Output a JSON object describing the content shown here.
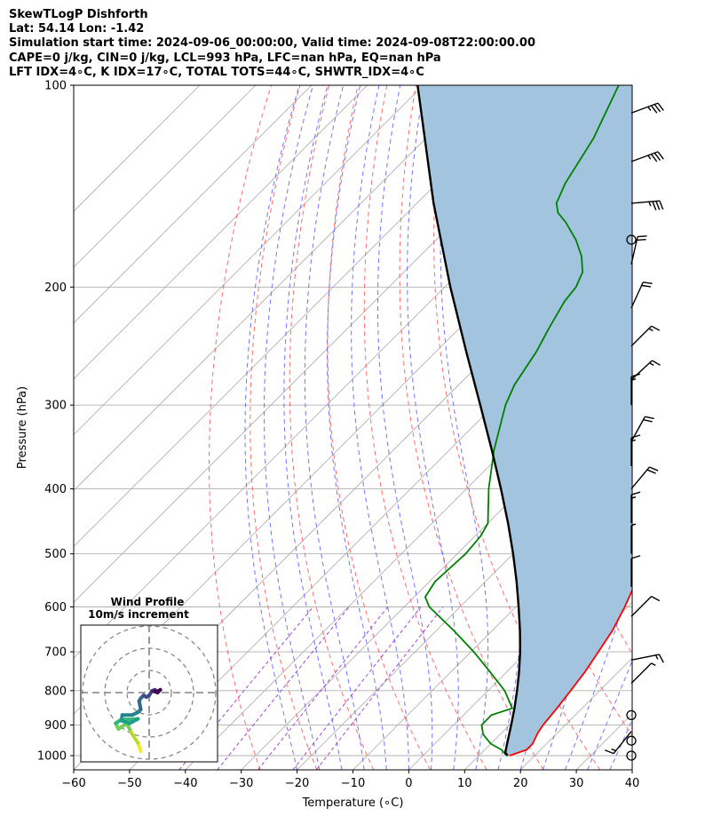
{
  "header": {
    "lines": [
      "SkewTLogP Dishforth",
      "Lat: 54.14   Lon: -1.42",
      "Simulation start time: 2024-09-06_00:00:00, Valid time: 2024-09-08T22:00:00.00",
      "CAPE=0 j/kg, CIN=0 j/kg, LCL=993 hPa, LFC=nan hPa, EQ=nan hPa",
      "LFT IDX=4∘C, K IDX=17∘C, TOTAL TOTS=44∘C, SHWTR_IDX=4∘C"
    ]
  },
  "chart_data": [
    {
      "type": "line",
      "subtype": "skew-t-log-p",
      "xlabel": "Temperature (∘C)",
      "ylabel": "Pressure (hPa)",
      "xlim": [
        -60,
        40
      ],
      "ylim": [
        1050,
        100
      ],
      "y_scale": "log",
      "x_ticks": [
        "−60",
        "−50",
        "−40",
        "−30",
        "−20",
        "−10",
        "0",
        "10",
        "20",
        "30",
        "40"
      ],
      "y_ticks": [
        "100",
        "200",
        "300",
        "400",
        "500",
        "600",
        "700",
        "800",
        "900",
        "1000"
      ],
      "grid": true,
      "series": [
        {
          "role": "temperature",
          "color": "#ff0000",
          "points": [
            [
              1000,
              15.5
            ],
            [
              980,
              17.5
            ],
            [
              960,
              17.5
            ],
            [
              925,
              16.5
            ],
            [
              900,
              16
            ],
            [
              850,
              15.5
            ],
            [
              800,
              14.8
            ],
            [
              750,
              14
            ],
            [
              700,
              12.8
            ],
            [
              650,
              11.5
            ],
            [
              600,
              9.5
            ],
            [
              550,
              7
            ],
            [
              500,
              3
            ],
            [
              450,
              -1.5
            ],
            [
              400,
              -6.5
            ],
            [
              350,
              -12
            ],
            [
              325,
              -15.5
            ],
            [
              300,
              -19
            ],
            [
              275,
              -23
            ],
            [
              250,
              -27
            ],
            [
              230,
              -31
            ],
            [
              210,
              -34
            ],
            [
              200,
              -35
            ],
            [
              180,
              -39
            ],
            [
              160,
              -43
            ],
            [
              150,
              -46.5
            ],
            [
              140,
              -50
            ],
            [
              130,
              -54
            ],
            [
              120,
              -58
            ],
            [
              110,
              -62.5
            ],
            [
              100,
              -67
            ]
          ]
        },
        {
          "role": "dewpoint",
          "color": "#008000",
          "points": [
            [
              1000,
              15
            ],
            [
              980,
              13
            ],
            [
              960,
              10
            ],
            [
              930,
              7
            ],
            [
              900,
              5
            ],
            [
              870,
              5
            ],
            [
              850,
              7.5
            ],
            [
              800,
              3
            ],
            [
              750,
              -3
            ],
            [
              700,
              -9.5
            ],
            [
              650,
              -17
            ],
            [
              600,
              -25.5
            ],
            [
              580,
              -28
            ],
            [
              550,
              -29
            ],
            [
              500,
              -28.5
            ],
            [
              470,
              -29
            ],
            [
              450,
              -30
            ],
            [
              400,
              -36
            ],
            [
              350,
              -42
            ],
            [
              300,
              -48
            ],
            [
              280,
              -50
            ],
            [
              250,
              -52
            ],
            [
              230,
              -54
            ],
            [
              210,
              -56
            ],
            [
              200,
              -56.5
            ],
            [
              190,
              -58
            ],
            [
              180,
              -61
            ],
            [
              170,
              -65
            ],
            [
              160,
              -70
            ],
            [
              155,
              -73
            ],
            [
              150,
              -75
            ],
            [
              140,
              -77
            ],
            [
              120,
              -80
            ],
            [
              100,
              -85
            ]
          ]
        },
        {
          "role": "parcel",
          "color": "#000000",
          "points": [
            [
              1000,
              15.2
            ],
            [
              990,
              14.2
            ],
            [
              950,
              12.5
            ],
            [
              900,
              10.3
            ],
            [
              850,
              7.9
            ],
            [
              800,
              5.2
            ],
            [
              750,
              2.2
            ],
            [
              700,
              -1.2
            ],
            [
              650,
              -5.1
            ],
            [
              600,
              -9.5
            ],
            [
              550,
              -14.4
            ],
            [
              500,
              -20
            ],
            [
              450,
              -26.4
            ],
            [
              400,
              -33.8
            ],
            [
              350,
              -42.4
            ],
            [
              300,
              -52.5
            ],
            [
              250,
              -64.5
            ],
            [
              200,
              -79
            ],
            [
              150,
              -97
            ],
            [
              100,
              -121
            ]
          ]
        }
      ],
      "fill_between": {
        "series": [
          "temperature",
          "parcel"
        ],
        "color": "#a3c4de"
      },
      "reference_lines": {
        "isotherm_color": "#a9a9a9",
        "dry_adiabat_color": "#ff5a5a",
        "moist_adiabat_color": "#5a5aff",
        "mixing_ratio_color": "#9932cc"
      },
      "wind_barbs": {
        "color": "#000000",
        "calm_circles_hPa": [
          170,
          870,
          950,
          1000
        ],
        "barbs": [
          {
            "p": 110,
            "u": 35,
            "v": 13
          },
          {
            "p": 130,
            "u": 35,
            "v": 13
          },
          {
            "p": 150,
            "u": 35,
            "v": 3
          },
          {
            "p": 185,
            "u": 5,
            "v": 22
          },
          {
            "p": 215,
            "u": 10,
            "v": 22
          },
          {
            "p": 245,
            "u": 12,
            "v": 12
          },
          {
            "p": 275,
            "u": 13,
            "v": 12
          },
          {
            "p": 300,
            "u": 0,
            "v": 15
          },
          {
            "p": 340,
            "u": 11,
            "v": 20
          },
          {
            "p": 370,
            "u": 0,
            "v": 15
          },
          {
            "p": 400,
            "u": 15,
            "v": 18
          },
          {
            "p": 450,
            "u": 0,
            "v": 18
          },
          {
            "p": 500,
            "u": 0,
            "v": 5
          },
          {
            "p": 560,
            "u": 0,
            "v": 10
          },
          {
            "p": 620,
            "u": 10,
            "v": 10
          },
          {
            "p": 720,
            "u": 15,
            "v": 3
          },
          {
            "p": 780,
            "u": 5,
            "v": 5
          },
          {
            "p": 920,
            "u": -12,
            "v": -15
          }
        ]
      }
    },
    {
      "type": "line",
      "subtype": "hodograph",
      "title": "Wind Profile",
      "subtitle": "10m/s increment",
      "range": [
        -12,
        12
      ],
      "grid": "dashed-circles",
      "colormap": "viridis",
      "points": [
        [
          -1.5,
          -10.5
        ],
        [
          -2,
          -9
        ],
        [
          -3,
          -7.5
        ],
        [
          -3.5,
          -6.5
        ],
        [
          -4,
          -5.5
        ],
        [
          -5.5,
          -6.5
        ],
        [
          -6,
          -5.5
        ],
        [
          -5,
          -4.8
        ],
        [
          -3.5,
          -4.8
        ],
        [
          -2,
          -4.7
        ],
        [
          -3.5,
          -5.5
        ],
        [
          -5,
          -5
        ],
        [
          -4.8,
          -4
        ],
        [
          -3,
          -4
        ],
        [
          -2,
          -3.5
        ],
        [
          -1.5,
          -3
        ],
        [
          -1.8,
          -1.5
        ],
        [
          -1.5,
          -1
        ],
        [
          -1,
          -0.5
        ],
        [
          -0.5,
          -0.8
        ],
        [
          0,
          -0.5
        ],
        [
          0.5,
          0.3
        ],
        [
          1,
          0.5
        ],
        [
          1.5,
          0.2
        ],
        [
          2,
          0.5
        ],
        [
          1.5,
          0
        ],
        [
          1,
          0.2
        ]
      ]
    }
  ]
}
